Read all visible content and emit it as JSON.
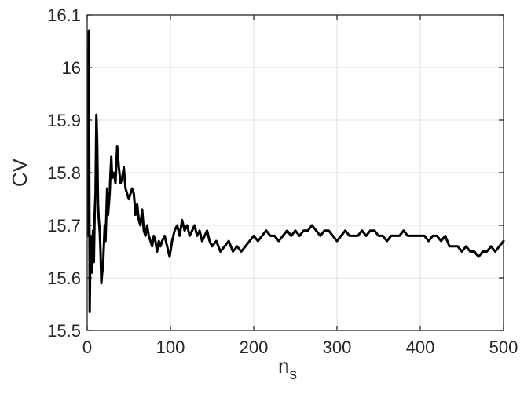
{
  "chart_data": {
    "type": "line",
    "title": "",
    "xlabel": "n",
    "xlabel_subscript": "s",
    "ylabel": "CV",
    "xlim": [
      0,
      500
    ],
    "ylim": [
      15.5,
      16.1
    ],
    "xticks": [
      0,
      100,
      200,
      300,
      400,
      500
    ],
    "xtick_labels": [
      "0",
      "100",
      "200",
      "300",
      "400",
      "500"
    ],
    "yticks": [
      15.5,
      15.6,
      15.7,
      15.8,
      15.9,
      16.0,
      16.1
    ],
    "ytick_labels": [
      "15.5",
      "15.6",
      "15.7",
      "15.8",
      "15.9",
      "16",
      "16.1"
    ],
    "grid": true,
    "legend": "none",
    "line_color": "#000000",
    "series": [
      {
        "x": [
          1,
          2,
          3,
          4,
          5,
          6,
          7,
          8,
          9,
          10,
          11,
          12,
          13,
          14,
          15,
          16,
          17,
          18,
          19,
          20,
          21,
          22,
          23,
          24,
          25,
          26,
          27,
          28,
          29,
          30,
          32,
          34,
          36,
          38,
          40,
          42,
          44,
          46,
          48,
          50,
          52,
          54,
          56,
          58,
          60,
          62,
          64,
          66,
          68,
          70,
          72,
          74,
          76,
          78,
          80,
          82,
          84,
          86,
          88,
          90,
          93,
          96,
          99,
          102,
          105,
          108,
          111,
          114,
          117,
          120,
          123,
          126,
          129,
          132,
          135,
          138,
          141,
          144,
          147,
          150,
          155,
          160,
          165,
          170,
          175,
          180,
          185,
          190,
          195,
          200,
          205,
          210,
          215,
          220,
          225,
          230,
          235,
          240,
          245,
          250,
          255,
          260,
          265,
          270,
          275,
          280,
          285,
          290,
          295,
          300,
          305,
          310,
          315,
          320,
          325,
          330,
          335,
          340,
          345,
          350,
          355,
          360,
          365,
          370,
          375,
          380,
          385,
          390,
          395,
          400,
          405,
          410,
          415,
          420,
          425,
          430,
          435,
          440,
          445,
          450,
          455,
          460,
          465,
          470,
          475,
          480,
          485,
          490,
          495,
          500
        ],
        "y": [
          15.68,
          16.07,
          15.535,
          15.68,
          15.64,
          15.61,
          15.69,
          15.63,
          15.72,
          15.76,
          15.91,
          15.86,
          15.74,
          15.71,
          15.69,
          15.65,
          15.59,
          15.61,
          15.62,
          15.66,
          15.7,
          15.67,
          15.72,
          15.77,
          15.72,
          15.74,
          15.76,
          15.8,
          15.83,
          15.79,
          15.8,
          15.78,
          15.85,
          15.81,
          15.78,
          15.79,
          15.81,
          15.77,
          15.76,
          15.75,
          15.76,
          15.77,
          15.76,
          15.72,
          15.74,
          15.71,
          15.7,
          15.73,
          15.69,
          15.68,
          15.7,
          15.68,
          15.67,
          15.66,
          15.68,
          15.67,
          15.65,
          15.67,
          15.66,
          15.67,
          15.68,
          15.66,
          15.64,
          15.67,
          15.69,
          15.7,
          15.68,
          15.71,
          15.69,
          15.7,
          15.68,
          15.69,
          15.7,
          15.68,
          15.69,
          15.67,
          15.68,
          15.69,
          15.67,
          15.66,
          15.67,
          15.65,
          15.66,
          15.67,
          15.65,
          15.66,
          15.65,
          15.66,
          15.67,
          15.68,
          15.67,
          15.68,
          15.69,
          15.68,
          15.68,
          15.67,
          15.68,
          15.69,
          15.68,
          15.69,
          15.68,
          15.69,
          15.69,
          15.7,
          15.69,
          15.68,
          15.69,
          15.69,
          15.68,
          15.67,
          15.68,
          15.69,
          15.68,
          15.68,
          15.68,
          15.69,
          15.68,
          15.69,
          15.69,
          15.68,
          15.68,
          15.67,
          15.68,
          15.68,
          15.68,
          15.69,
          15.68,
          15.68,
          15.68,
          15.68,
          15.68,
          15.67,
          15.68,
          15.68,
          15.67,
          15.68,
          15.66,
          15.66,
          15.66,
          15.65,
          15.66,
          15.65,
          15.65,
          15.64,
          15.65,
          15.65,
          15.66,
          15.65,
          15.66,
          15.67
        ]
      }
    ]
  }
}
